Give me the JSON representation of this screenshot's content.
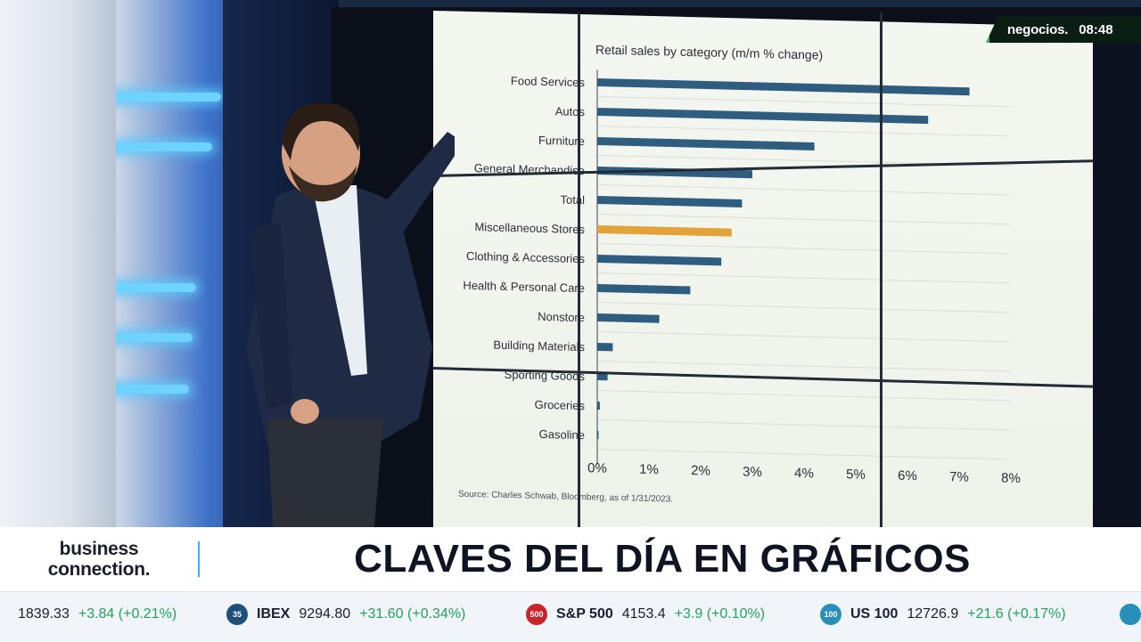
{
  "network": {
    "logo": "negocios.",
    "clock": "08:48"
  },
  "lower_third": {
    "brand_line1": "business",
    "brand_line2": "connection.",
    "headline": "CLAVES DEL DÍA EN GRÁFICOS"
  },
  "ticker": [
    {
      "badge": "",
      "name": "",
      "value": "1839.33",
      "change": "+3.84 (+0.21%)",
      "badge_color": "#1e4f7a"
    },
    {
      "badge": "35",
      "name": "IBEX",
      "value": "9294.80",
      "change": "+31.60 (+0.34%)",
      "badge_color": "#1e4f7a"
    },
    {
      "badge": "500",
      "name": "S&P 500",
      "value": "4153.4",
      "change": "+3.9 (+0.10%)",
      "badge_color": "#c8262c"
    },
    {
      "badge": "100",
      "name": "US 100",
      "value": "12726.9",
      "change": "+21.6 (+0.17%)",
      "badge_color": "#2a8fb8"
    }
  ],
  "colors": {
    "bar": "#2f5d80",
    "highlight_bar": "#e3a23a",
    "positive_change": "#23a35a"
  },
  "chart_data": {
    "type": "bar",
    "orientation": "horizontal",
    "title": "Retail sales by category (m/m % change)",
    "source": "Source: Charles Schwab, Bloomberg, as of 1/31/2023.",
    "categories": [
      "Food Services",
      "Autos",
      "Furniture",
      "General Merchandise",
      "Total",
      "Miscellaneous Stores",
      "Clothing & Accessories",
      "Health & Personal Care",
      "Nonstore",
      "Building Materials",
      "Sporting Goods",
      "Groceries",
      "Gasoline"
    ],
    "values": [
      7.2,
      6.4,
      4.2,
      3.0,
      2.8,
      2.6,
      2.4,
      1.8,
      1.2,
      0.3,
      0.2,
      0.05,
      0.02
    ],
    "highlight_category": "Miscellaneous Stores",
    "xlim": [
      0,
      8
    ],
    "xticks": [
      "0%",
      "1%",
      "2%",
      "3%",
      "4%",
      "5%",
      "6%",
      "7%",
      "8%"
    ],
    "grid": true
  }
}
